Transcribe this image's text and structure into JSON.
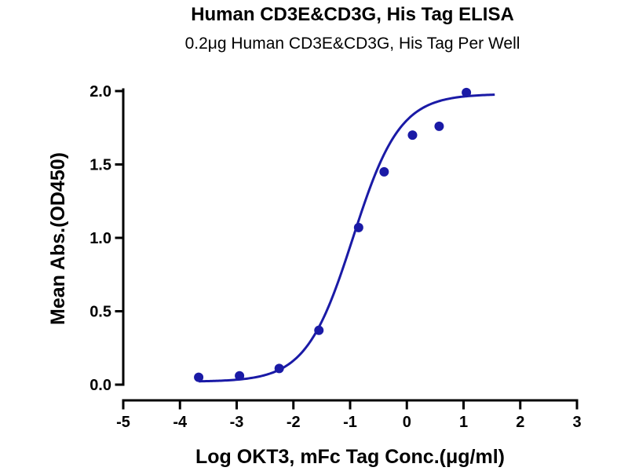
{
  "chart_data": {
    "type": "scatter",
    "title": "Human CD3E&CD3G, His Tag ELISA",
    "subtitle": "0.2μg Human CD3E&CD3G, His Tag Per Well",
    "xlabel": "Log OKT3, mFc Tag Conc.(μg/ml)",
    "ylabel": "Mean Abs.(OD450)",
    "xlim": [
      -5,
      3
    ],
    "ylim": [
      0,
      2.0
    ],
    "x_ticks": [
      "-5",
      "-4",
      "-3",
      "-2",
      "-1",
      "0",
      "1",
      "2",
      "3"
    ],
    "y_ticks": [
      "0.0",
      "0.5",
      "1.0",
      "1.5",
      "2.0"
    ],
    "grid": false,
    "color": "#1a1aa6",
    "points": [
      {
        "x": -3.67,
        "y": 0.05
      },
      {
        "x": -2.95,
        "y": 0.06
      },
      {
        "x": -2.25,
        "y": 0.11
      },
      {
        "x": -1.55,
        "y": 0.37
      },
      {
        "x": -0.85,
        "y": 1.07
      },
      {
        "x": -0.4,
        "y": 1.45
      },
      {
        "x": 0.1,
        "y": 1.7
      },
      {
        "x": 0.57,
        "y": 1.76
      },
      {
        "x": 1.05,
        "y": 1.99
      }
    ],
    "fit": {
      "model": "4PL",
      "bottom": 0.02,
      "top": 1.98,
      "log_ec50": -0.95,
      "hill_slope": 1.05,
      "x_range": [
        -3.67,
        1.55
      ]
    }
  }
}
